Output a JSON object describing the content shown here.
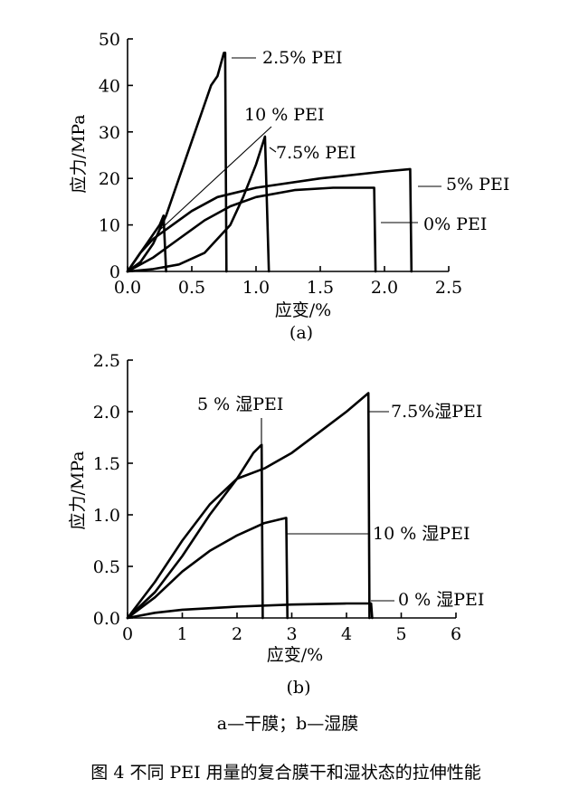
{
  "chart_data": [
    {
      "type": "line",
      "panel_label": "(a)",
      "xlabel": "应变/%",
      "ylabel": "应力/MPa",
      "xlim": [
        0,
        2.5
      ],
      "ylim": [
        0,
        50
      ],
      "xticks": [
        "0.0",
        "0.5",
        "1.0",
        "1.5",
        "2.0",
        "2.5"
      ],
      "yticks": [
        "0",
        "10",
        "20",
        "30",
        "40",
        "50"
      ],
      "series": [
        {
          "name": "2.5% PEI",
          "points": [
            [
              0,
              0
            ],
            [
              0.1,
              2
            ],
            [
              0.2,
              6
            ],
            [
              0.3,
              12
            ],
            [
              0.4,
              20
            ],
            [
              0.5,
              28
            ],
            [
              0.6,
              36
            ],
            [
              0.65,
              40
            ],
            [
              0.7,
              42
            ],
            [
              0.75,
              47
            ],
            [
              0.76,
              47
            ],
            [
              0.77,
              0
            ]
          ]
        },
        {
          "name": "10 % PEI",
          "points": [
            [
              0,
              0
            ],
            [
              0.05,
              2
            ],
            [
              0.1,
              4
            ],
            [
              0.15,
              6
            ],
            [
              0.2,
              8
            ],
            [
              0.25,
              10
            ],
            [
              0.28,
              12
            ],
            [
              0.3,
              0
            ]
          ]
        },
        {
          "name": "7.5% PEI",
          "points": [
            [
              0,
              0
            ],
            [
              0.2,
              0.5
            ],
            [
              0.4,
              1.5
            ],
            [
              0.6,
              4
            ],
            [
              0.8,
              10
            ],
            [
              0.9,
              16
            ],
            [
              1.0,
              23
            ],
            [
              1.07,
              29
            ],
            [
              1.1,
              0
            ]
          ]
        },
        {
          "name": "5% PEI",
          "points": [
            [
              0,
              0
            ],
            [
              0.1,
              4
            ],
            [
              0.2,
              7
            ],
            [
              0.3,
              9
            ],
            [
              0.5,
              13
            ],
            [
              0.7,
              16
            ],
            [
              1.0,
              18
            ],
            [
              1.5,
              20
            ],
            [
              2.0,
              21.5
            ],
            [
              2.2,
              22
            ],
            [
              2.21,
              0
            ]
          ]
        },
        {
          "name": "0% PEI",
          "points": [
            [
              0,
              0
            ],
            [
              0.2,
              3
            ],
            [
              0.4,
              7
            ],
            [
              0.6,
              11
            ],
            [
              0.8,
              14
            ],
            [
              1.0,
              16
            ],
            [
              1.3,
              17.5
            ],
            [
              1.6,
              18
            ],
            [
              1.92,
              18
            ],
            [
              1.93,
              0
            ]
          ]
        }
      ]
    },
    {
      "type": "line",
      "panel_label": "(b)",
      "xlabel": "应变/%",
      "ylabel": "应力/MPa",
      "xlim": [
        0,
        6
      ],
      "ylim": [
        0,
        2.5
      ],
      "xticks": [
        "0",
        "1",
        "2",
        "3",
        "4",
        "5",
        "6"
      ],
      "yticks": [
        "0.0",
        "0.5",
        "1.0",
        "1.5",
        "2.0",
        "2.5"
      ],
      "series": [
        {
          "name": "5 % 湿PEI",
          "points": [
            [
              0,
              0
            ],
            [
              0.5,
              0.25
            ],
            [
              1.0,
              0.6
            ],
            [
              1.5,
              1.0
            ],
            [
              2.0,
              1.35
            ],
            [
              2.3,
              1.6
            ],
            [
              2.45,
              1.68
            ],
            [
              2.47,
              0
            ]
          ]
        },
        {
          "name": "7.5%湿PEI",
          "points": [
            [
              0,
              0
            ],
            [
              0.5,
              0.35
            ],
            [
              1.0,
              0.75
            ],
            [
              1.5,
              1.1
            ],
            [
              2.0,
              1.35
            ],
            [
              2.5,
              1.45
            ],
            [
              3.0,
              1.6
            ],
            [
              3.5,
              1.8
            ],
            [
              4.0,
              2.0
            ],
            [
              4.4,
              2.18
            ],
            [
              4.42,
              0
            ]
          ]
        },
        {
          "name": "10 % 湿PEI",
          "points": [
            [
              0,
              0
            ],
            [
              0.5,
              0.2
            ],
            [
              1.0,
              0.45
            ],
            [
              1.5,
              0.65
            ],
            [
              2.0,
              0.8
            ],
            [
              2.5,
              0.92
            ],
            [
              2.9,
              0.97
            ],
            [
              2.92,
              0
            ]
          ]
        },
        {
          "name": "0 % 湿PEI",
          "points": [
            [
              0,
              0
            ],
            [
              0.5,
              0.05
            ],
            [
              1.0,
              0.08
            ],
            [
              2.0,
              0.11
            ],
            [
              3.0,
              0.13
            ],
            [
              4.0,
              0.14
            ],
            [
              4.45,
              0.14
            ],
            [
              4.47,
              0
            ]
          ]
        }
      ]
    }
  ],
  "legend_note": "a—干膜；b—湿膜",
  "caption": "图 4   不同 PEI 用量的复合膜干和湿状态的拉伸性能"
}
